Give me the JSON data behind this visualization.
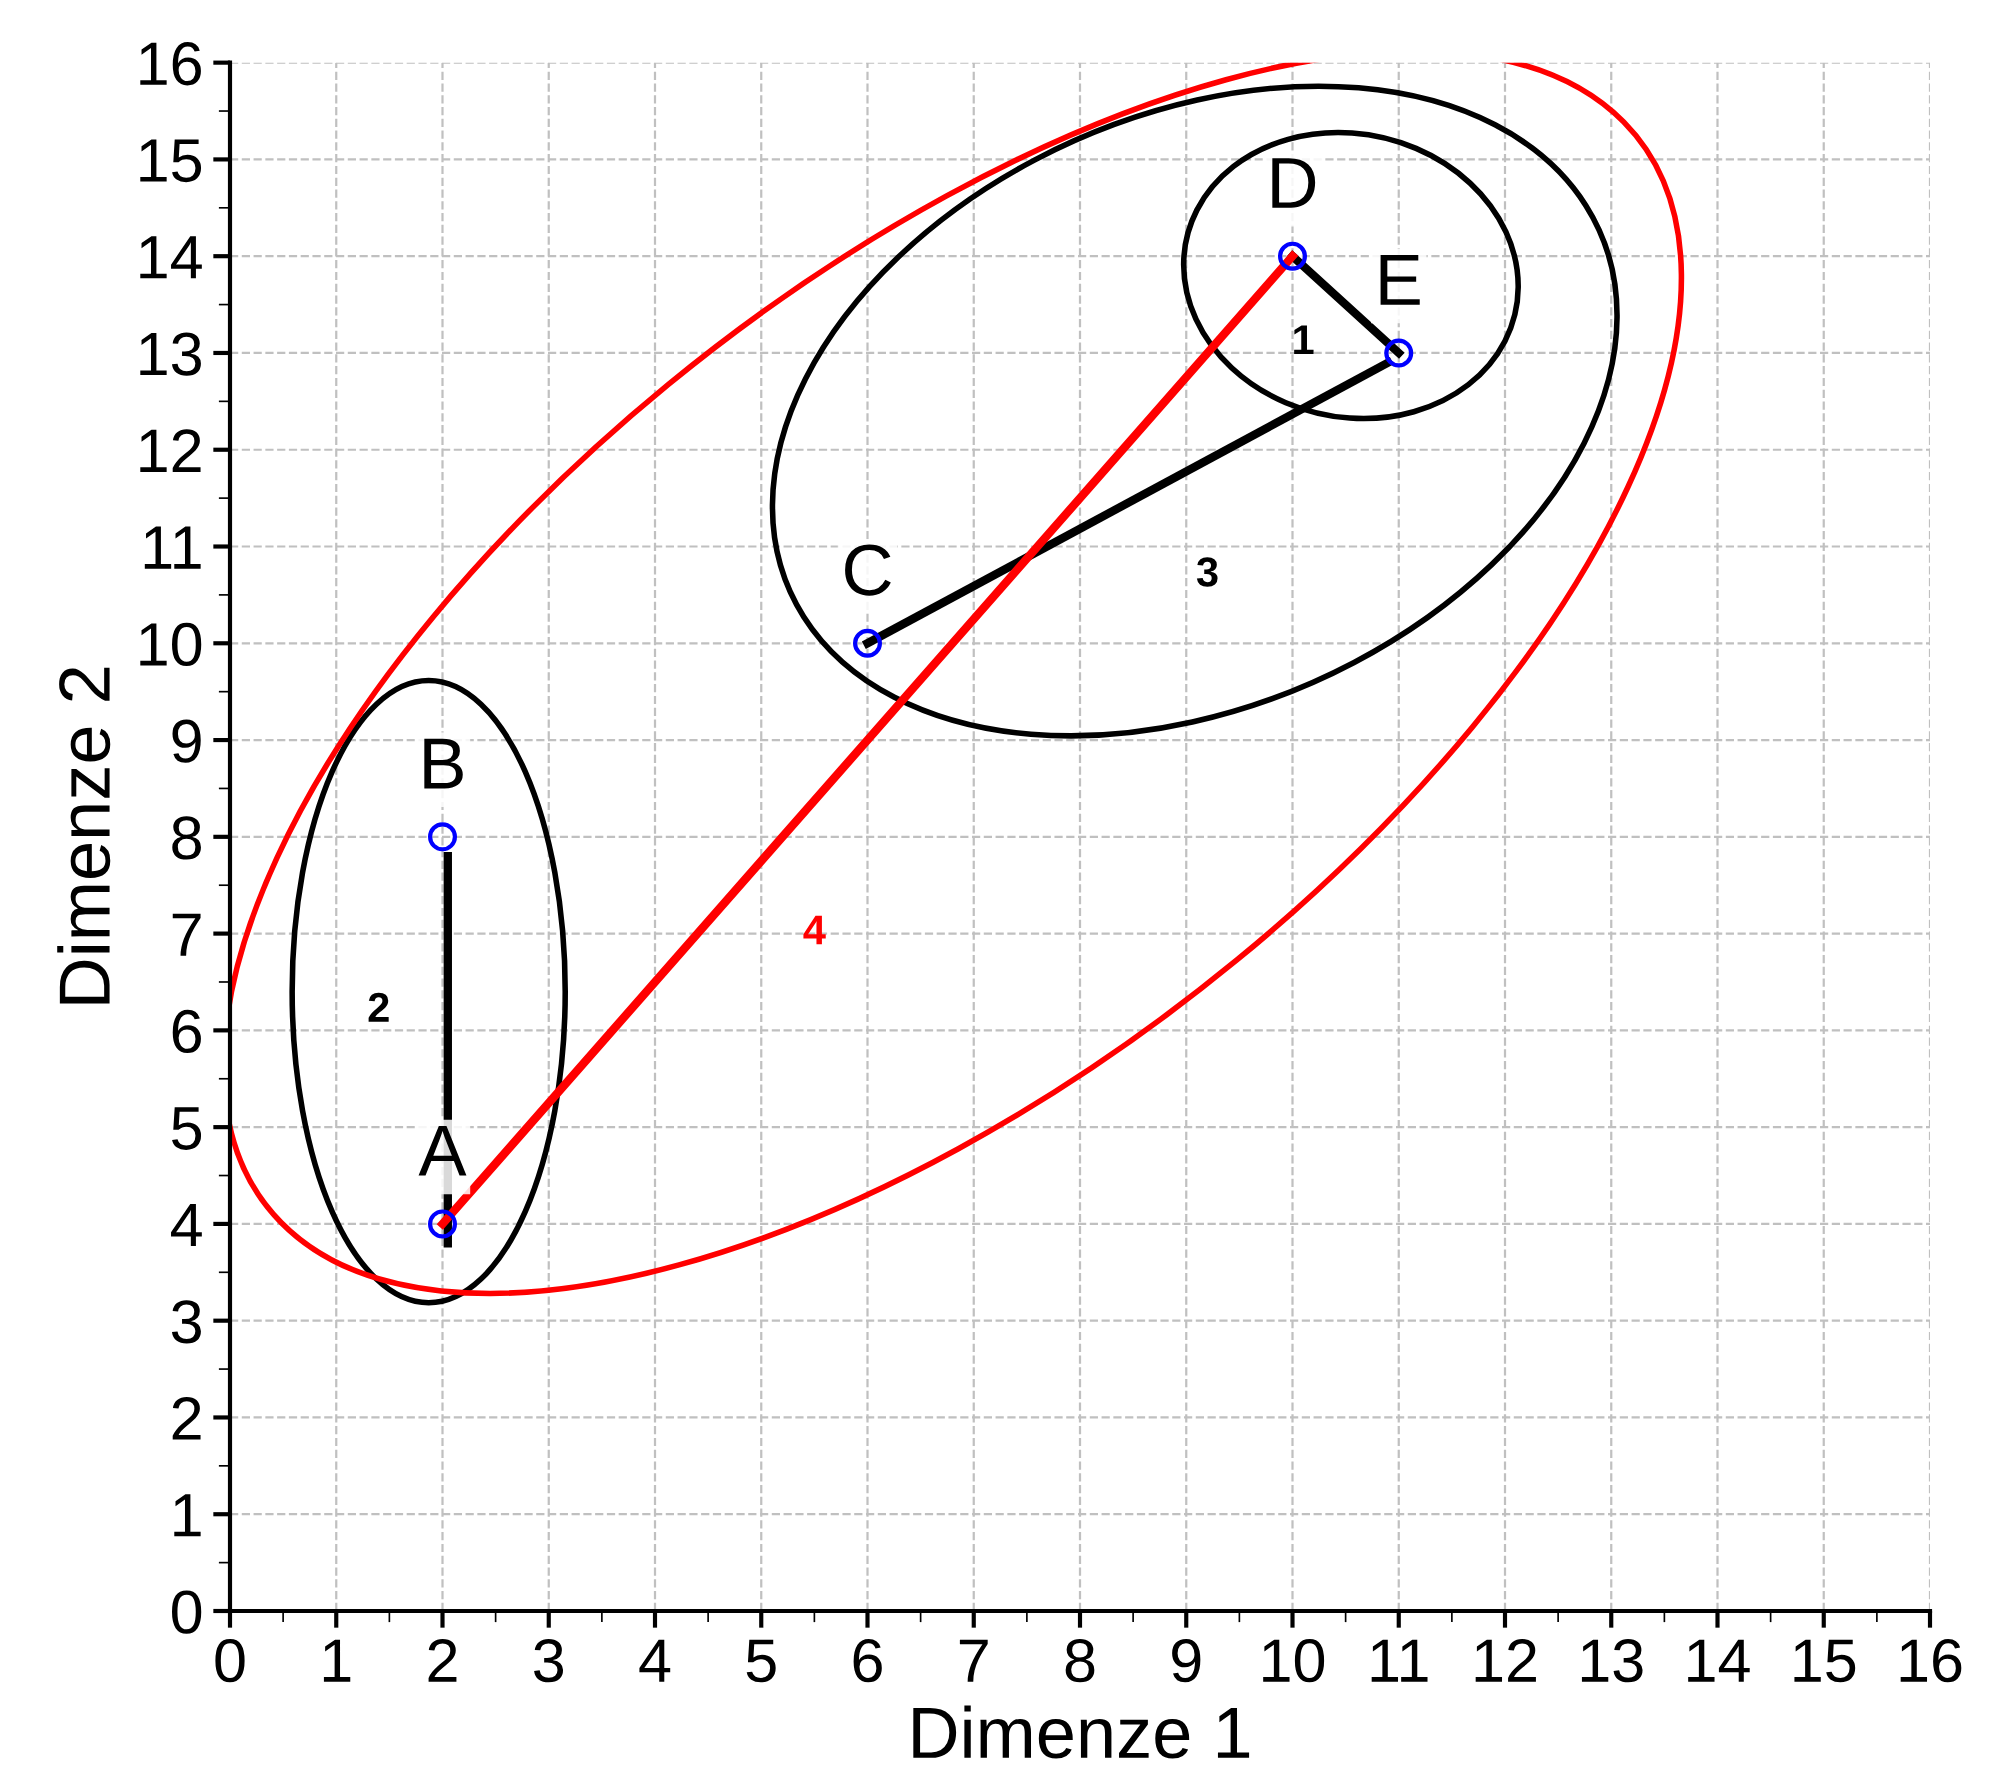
{
  "chart_data": {
    "type": "scatter",
    "xlabel": "Dimenze 1",
    "ylabel": "Dimenze 2",
    "xlim": [
      0,
      16
    ],
    "ylim": [
      0,
      16
    ],
    "xticks": [
      0,
      1,
      2,
      3,
      4,
      5,
      6,
      7,
      8,
      9,
      10,
      11,
      12,
      13,
      14,
      15,
      16
    ],
    "yticks": [
      0,
      1,
      2,
      3,
      4,
      5,
      6,
      7,
      8,
      9,
      10,
      11,
      12,
      13,
      14,
      15,
      16
    ],
    "grid": true,
    "legend": false,
    "series": [
      {
        "type": "line",
        "color": "#000000",
        "x": [
          2.05,
          2.05
        ],
        "values": [
          7.8,
          3.8
        ],
        "marker": "none"
      },
      {
        "type": "line",
        "color": "#000000",
        "x": [
          10,
          11
        ],
        "values": [
          14,
          13
        ],
        "marker": "none"
      },
      {
        "type": "line",
        "color": "#000000",
        "x": [
          6,
          10.9
        ],
        "values": [
          10,
          12.9
        ],
        "marker": "none"
      },
      {
        "type": "line",
        "color": "#ff0000",
        "x": [
          2,
          10
        ],
        "values": [
          4,
          14
        ],
        "marker": "none"
      },
      {
        "color": "#0000ff",
        "x": [
          2,
          2,
          6,
          10,
          11
        ],
        "values": [
          4,
          8,
          10,
          14,
          13
        ],
        "marker": "circle"
      }
    ],
    "annotations": [
      {
        "text": "A",
        "x": 2,
        "y": 4
      },
      {
        "text": "B",
        "x": 2,
        "y": 8
      },
      {
        "text": "C",
        "x": 6,
        "y": 10
      },
      {
        "text": "D",
        "x": 10,
        "y": 14
      },
      {
        "text": "E",
        "x": 11,
        "y": 13
      },
      "1",
      "2",
      "3",
      "4"
    ]
  }
}
